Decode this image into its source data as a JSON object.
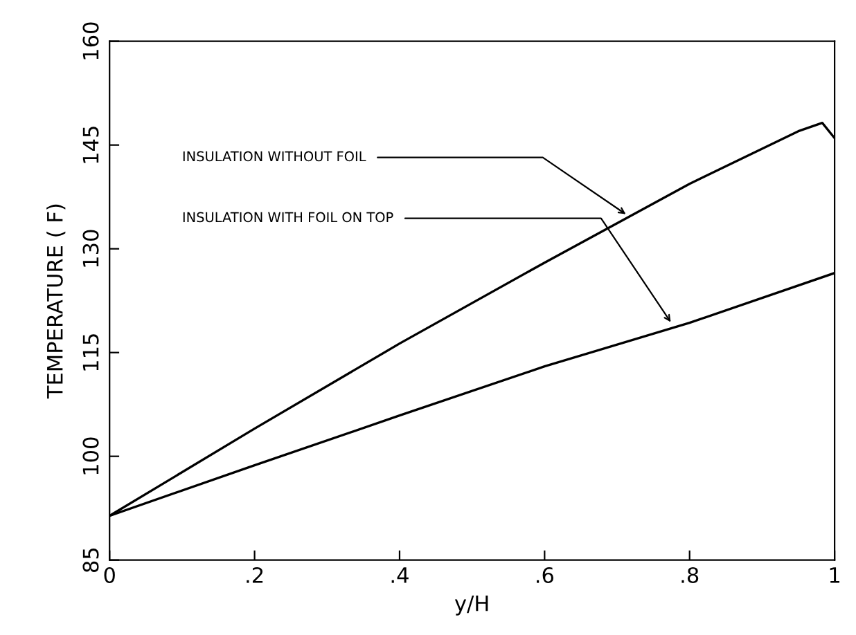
{
  "chart_data": {
    "type": "line",
    "xlabel": "y/H",
    "ylabel": "TEMPERATURE ( F)",
    "x": [
      0,
      0.2,
      0.4,
      0.6,
      0.8,
      0.95,
      0.983,
      1
    ],
    "series": [
      {
        "color": "#000000",
        "values": [
          91.4,
          104,
          116.3,
          128,
          139.4,
          147,
          148.2,
          146
        ]
      },
      {
        "color": "#000000",
        "x": [
          0,
          0.2,
          0.4,
          0.6,
          0.8,
          1
        ],
        "values": [
          91.4,
          98.7,
          105.9,
          113,
          119.3,
          126.5
        ]
      }
    ],
    "xlim": [
      0,
      1
    ],
    "ylim": [
      85,
      160
    ],
    "xticks": [
      0,
      {
        "value": 0.2,
        "label": ".2"
      },
      {
        "value": 0.4,
        "label": ".4"
      },
      {
        "value": 0.6,
        "label": ".6"
      },
      {
        "value": 0.8,
        "label": ".8"
      },
      1
    ],
    "yticks": [
      85,
      100,
      115,
      130,
      145,
      160
    ],
    "annotations": [
      {
        "text": "INSULATION WITHOUT FOIL",
        "x": 0.712,
        "y": 135
      },
      {
        "text": "INSULATION WITH FOIL ON TOP",
        "x": 0.774,
        "y": 119.4
      }
    ],
    "grid": false,
    "legend": false,
    "marker": "none",
    "line_style": "solid"
  }
}
